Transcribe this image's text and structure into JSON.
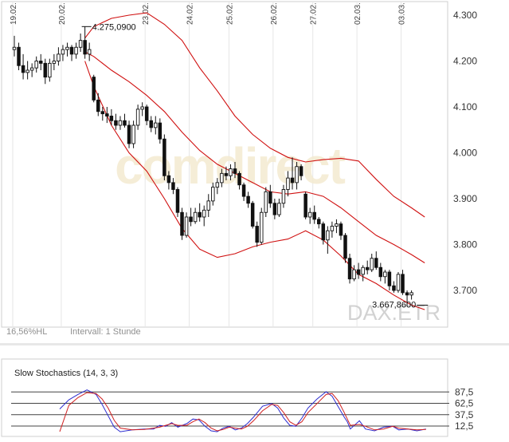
{
  "chart_data": [
    {
      "type": "candlestick",
      "symbol": "DAX.ETR",
      "watermark": "comdirect",
      "interval_label": "Intervall: 1 Stunde",
      "hl_label": "16,56%HL",
      "date_labels": [
        "19.02.",
        "20.02.",
        "23.02.",
        "24.02.",
        "25.02.",
        "26.02.",
        "27.02.",
        "02.03.",
        "03.03."
      ],
      "y_ticks": [
        "4.300",
        "4.200",
        "4.100",
        "4.000",
        "3.900",
        "3.800",
        "3.700"
      ],
      "y_tick_values": [
        4300,
        4200,
        4100,
        4000,
        3900,
        3800,
        3700
      ],
      "ylim": [
        3615,
        4325
      ],
      "high_annotation": {
        "text": "4.275,0900",
        "value": 4275.09,
        "index": 16
      },
      "low_annotation": {
        "text": "3.667,8600",
        "value": 3667.86,
        "index": 93
      },
      "candles": [
        [
          4225,
          4255,
          4210,
          4230
        ],
        [
          4230,
          4240,
          4180,
          4190
        ],
        [
          4190,
          4215,
          4160,
          4175
        ],
        [
          4175,
          4200,
          4160,
          4180
        ],
        [
          4180,
          4195,
          4165,
          4185
        ],
        [
          4185,
          4210,
          4175,
          4200
        ],
        [
          4200,
          4215,
          4180,
          4195
        ],
        [
          4195,
          4205,
          4150,
          4165
        ],
        [
          4165,
          4205,
          4155,
          4195
        ],
        [
          4195,
          4215,
          4180,
          4200
        ],
        [
          4200,
          4230,
          4190,
          4215
        ],
        [
          4215,
          4235,
          4200,
          4225
        ],
        [
          4225,
          4240,
          4210,
          4230
        ],
        [
          4230,
          4235,
          4200,
          4215
        ],
        [
          4215,
          4240,
          4205,
          4230
        ],
        [
          4230,
          4260,
          4220,
          4245
        ],
        [
          4245,
          4275,
          4205,
          4215
        ],
        [
          4215,
          4240,
          4200,
          4225
        ],
        [
          4165,
          4170,
          4110,
          4115
        ],
        [
          4115,
          4130,
          4080,
          4090
        ],
        [
          4090,
          4100,
          4070,
          4085
        ],
        [
          4085,
          4100,
          4065,
          4080
        ],
        [
          4080,
          4095,
          4060,
          4070
        ],
        [
          4070,
          4085,
          4050,
          4060
        ],
        [
          4060,
          4080,
          4050,
          4070
        ],
        [
          4070,
          4085,
          4055,
          4060
        ],
        [
          4060,
          4070,
          4010,
          4020
        ],
        [
          4020,
          4070,
          4010,
          4060
        ],
        [
          4060,
          4105,
          4050,
          4095
        ],
        [
          4095,
          4110,
          4080,
          4100
        ],
        [
          4100,
          4105,
          4060,
          4070
        ],
        [
          4070,
          4080,
          4045,
          4055
        ],
        [
          4055,
          4080,
          4040,
          4065
        ],
        [
          4065,
          4075,
          4020,
          4030
        ],
        [
          4030,
          4040,
          3940,
          3950
        ],
        [
          3950,
          3960,
          3920,
          3935
        ],
        [
          3935,
          3945,
          3910,
          3920
        ],
        [
          3920,
          3925,
          3860,
          3870
        ],
        [
          3870,
          3880,
          3810,
          3820
        ],
        [
          3820,
          3870,
          3815,
          3860
        ],
        [
          3860,
          3880,
          3840,
          3850
        ],
        [
          3850,
          3880,
          3845,
          3870
        ],
        [
          3870,
          3890,
          3850,
          3860
        ],
        [
          3860,
          3885,
          3840,
          3875
        ],
        [
          3875,
          3910,
          3860,
          3895
        ],
        [
          3895,
          3935,
          3885,
          3925
        ],
        [
          3925,
          3945,
          3910,
          3935
        ],
        [
          3935,
          3965,
          3925,
          3955
        ],
        [
          3955,
          3970,
          3940,
          3950
        ],
        [
          3950,
          3975,
          3940,
          3965
        ],
        [
          3965,
          3980,
          3945,
          3955
        ],
        [
          3955,
          3960,
          3920,
          3930
        ],
        [
          3930,
          3935,
          3895,
          3905
        ],
        [
          3905,
          3915,
          3880,
          3890
        ],
        [
          3890,
          3895,
          3835,
          3840
        ],
        [
          3840,
          3850,
          3795,
          3805
        ],
        [
          3805,
          3880,
          3800,
          3870
        ],
        [
          3870,
          3925,
          3860,
          3915
        ],
        [
          3915,
          3930,
          3880,
          3890
        ],
        [
          3890,
          3900,
          3855,
          3865
        ],
        [
          3865,
          3900,
          3860,
          3890
        ],
        [
          3890,
          3930,
          3880,
          3920
        ],
        [
          3920,
          3960,
          3905,
          3945
        ],
        [
          3945,
          3990,
          3920,
          3935
        ],
        [
          3935,
          3980,
          3920,
          3970
        ],
        [
          3970,
          3975,
          3940,
          3950
        ],
        [
          3910,
          3915,
          3855,
          3860
        ],
        [
          3860,
          3880,
          3845,
          3870
        ],
        [
          3870,
          3885,
          3845,
          3855
        ],
        [
          3855,
          3860,
          3835,
          3845
        ],
        [
          3845,
          3850,
          3800,
          3810
        ],
        [
          3810,
          3840,
          3780,
          3830
        ],
        [
          3830,
          3850,
          3815,
          3840
        ],
        [
          3840,
          3855,
          3825,
          3845
        ],
        [
          3845,
          3850,
          3810,
          3820
        ],
        [
          3820,
          3825,
          3760,
          3770
        ],
        [
          3770,
          3780,
          3715,
          3725
        ],
        [
          3725,
          3755,
          3720,
          3745
        ],
        [
          3745,
          3760,
          3725,
          3735
        ],
        [
          3735,
          3755,
          3720,
          3750
        ],
        [
          3750,
          3765,
          3735,
          3745
        ],
        [
          3745,
          3780,
          3740,
          3770
        ],
        [
          3770,
          3785,
          3745,
          3750
        ],
        [
          3750,
          3760,
          3720,
          3730
        ],
        [
          3730,
          3745,
          3715,
          3740
        ],
        [
          3740,
          3745,
          3700,
          3710
        ],
        [
          3710,
          3720,
          3695,
          3700
        ],
        [
          3700,
          3740,
          3695,
          3735
        ],
        [
          3735,
          3745,
          3690,
          3695
        ],
        [
          3695,
          3700,
          3668,
          3690
        ],
        [
          3690,
          3700,
          3680,
          3695
        ]
      ],
      "gap_indices": [
        18,
        66
      ],
      "bands": {
        "start_index": 16,
        "upper": [
          [
            16,
            4250
          ],
          [
            18,
            4275
          ],
          [
            22,
            4293
          ],
          [
            26,
            4300
          ],
          [
            30,
            4305
          ],
          [
            34,
            4280
          ],
          [
            38,
            4245
          ],
          [
            42,
            4185
          ],
          [
            46,
            4135
          ],
          [
            50,
            4080
          ],
          [
            54,
            4040
          ],
          [
            58,
            4010
          ],
          [
            62,
            3990
          ],
          [
            66,
            3980
          ],
          [
            70,
            3985
          ],
          [
            74,
            3988
          ],
          [
            78,
            3982
          ],
          [
            82,
            3942
          ],
          [
            86,
            3905
          ],
          [
            90,
            3880
          ],
          [
            93,
            3860
          ]
        ],
        "middle": [
          [
            16,
            4220
          ],
          [
            18,
            4210
          ],
          [
            22,
            4180
          ],
          [
            26,
            4155
          ],
          [
            30,
            4125
          ],
          [
            34,
            4090
          ],
          [
            38,
            4045
          ],
          [
            42,
            4005
          ],
          [
            46,
            3975
          ],
          [
            50,
            3955
          ],
          [
            54,
            3935
          ],
          [
            58,
            3915
          ],
          [
            62,
            3910
          ],
          [
            66,
            3915
          ],
          [
            70,
            3905
          ],
          [
            74,
            3880
          ],
          [
            78,
            3850
          ],
          [
            82,
            3820
          ],
          [
            86,
            3800
          ],
          [
            90,
            3778
          ],
          [
            93,
            3760
          ]
        ],
        "lower": [
          [
            16,
            4200
          ],
          [
            18,
            4145
          ],
          [
            22,
            4060
          ],
          [
            26,
            4000
          ],
          [
            30,
            3960
          ],
          [
            34,
            3900
          ],
          [
            38,
            3835
          ],
          [
            42,
            3790
          ],
          [
            46,
            3772
          ],
          [
            50,
            3780
          ],
          [
            54,
            3795
          ],
          [
            58,
            3805
          ],
          [
            62,
            3812
          ],
          [
            66,
            3830
          ],
          [
            70,
            3810
          ],
          [
            74,
            3775
          ],
          [
            78,
            3735
          ],
          [
            82,
            3715
          ],
          [
            86,
            3690
          ],
          [
            90,
            3668
          ],
          [
            93,
            3658
          ]
        ]
      }
    },
    {
      "type": "line",
      "title": "Slow Stochastics (14, 3, 3)",
      "y_ticks": [
        "87,5",
        "62,5",
        "37,5",
        "12,5"
      ],
      "y_tick_values": [
        87.5,
        62.5,
        37.5,
        12.5
      ],
      "ylim": [
        0,
        100
      ],
      "series": [
        {
          "color": "#2c2cd0",
          "values": [
            [
              0,
              50
            ],
            [
              3,
              70
            ],
            [
              6,
              82
            ],
            [
              9,
              92
            ],
            [
              12,
              82
            ],
            [
              14,
              60
            ],
            [
              16,
              35
            ],
            [
              18,
              10
            ],
            [
              20,
              0
            ],
            [
              24,
              4
            ],
            [
              28,
              6
            ],
            [
              31,
              6
            ],
            [
              33,
              14
            ],
            [
              35,
              12
            ],
            [
              37,
              20
            ],
            [
              39,
              10
            ],
            [
              42,
              18
            ],
            [
              44,
              28
            ],
            [
              46,
              26
            ],
            [
              48,
              12
            ],
            [
              50,
              2
            ],
            [
              52,
              0
            ],
            [
              54,
              8
            ],
            [
              56,
              12
            ],
            [
              58,
              4
            ],
            [
              60,
              8
            ],
            [
              62,
              18
            ],
            [
              64,
              32
            ],
            [
              67,
              56
            ],
            [
              70,
              62
            ],
            [
              72,
              52
            ],
            [
              74,
              30
            ],
            [
              76,
              14
            ],
            [
              78,
              12
            ],
            [
              80,
              30
            ],
            [
              82,
              52
            ],
            [
              85,
              72
            ],
            [
              88,
              88
            ],
            [
              90,
              78
            ],
            [
              92,
              55
            ],
            [
              94,
              32
            ],
            [
              95,
              22
            ],
            [
              96,
              6
            ],
            [
              99,
              24
            ],
            [
              101,
              6
            ],
            [
              104,
              2
            ],
            [
              107,
              10
            ],
            [
              110,
              12
            ],
            [
              112,
              4
            ],
            [
              115,
              6
            ],
            [
              118,
              2
            ],
            [
              121,
              6
            ]
          ]
        },
        {
          "color": "#d02020",
          "values": [
            [
              0,
              0
            ],
            [
              3,
              58
            ],
            [
              6,
              75
            ],
            [
              9,
              86
            ],
            [
              12,
              84
            ],
            [
              14,
              72
            ],
            [
              16,
              52
            ],
            [
              18,
              25
            ],
            [
              20,
              8
            ],
            [
              24,
              4
            ],
            [
              28,
              5
            ],
            [
              31,
              8
            ],
            [
              33,
              10
            ],
            [
              35,
              14
            ],
            [
              37,
              18
            ],
            [
              39,
              14
            ],
            [
              42,
              14
            ],
            [
              44,
              22
            ],
            [
              46,
              28
            ],
            [
              48,
              20
            ],
            [
              50,
              8
            ],
            [
              52,
              2
            ],
            [
              54,
              5
            ],
            [
              56,
              10
            ],
            [
              58,
              8
            ],
            [
              60,
              6
            ],
            [
              62,
              12
            ],
            [
              64,
              24
            ],
            [
              67,
              46
            ],
            [
              70,
              60
            ],
            [
              72,
              58
            ],
            [
              74,
              42
            ],
            [
              76,
              22
            ],
            [
              78,
              14
            ],
            [
              80,
              22
            ],
            [
              82,
              42
            ],
            [
              85,
              62
            ],
            [
              88,
              82
            ],
            [
              90,
              84
            ],
            [
              92,
              68
            ],
            [
              94,
              42
            ],
            [
              95,
              28
            ],
            [
              96,
              14
            ],
            [
              99,
              16
            ],
            [
              101,
              12
            ],
            [
              104,
              4
            ],
            [
              107,
              6
            ],
            [
              110,
              12
            ],
            [
              112,
              8
            ],
            [
              115,
              6
            ],
            [
              118,
              4
            ],
            [
              121,
              5
            ]
          ]
        }
      ]
    }
  ]
}
